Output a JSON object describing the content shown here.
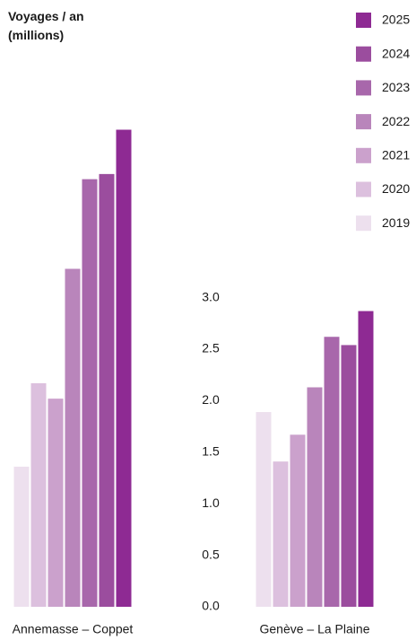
{
  "chart_data": {
    "type": "bar",
    "title": "Voyages / an (millions)",
    "categories": [
      "Annemasse – Coppet",
      "Genève – La Plaine"
    ],
    "series": [
      {
        "name": "2019",
        "color": "#ede0ee",
        "values": [
          1.36,
          1.89
        ]
      },
      {
        "name": "2020",
        "color": "#dcc0de",
        "values": [
          2.17,
          1.41
        ]
      },
      {
        "name": "2021",
        "color": "#cba1cc",
        "values": [
          2.02,
          1.67
        ]
      },
      {
        "name": "2022",
        "color": "#b985bb",
        "values": [
          3.28,
          2.13
        ]
      },
      {
        "name": "2023",
        "color": "#a867ab",
        "values": [
          4.15,
          2.62
        ]
      },
      {
        "name": "2024",
        "color": "#9b4d9e",
        "values": [
          4.2,
          2.54
        ]
      },
      {
        "name": "2025",
        "color": "#8e2a93",
        "values": [
          4.63,
          2.87
        ]
      }
    ],
    "ylim": [
      0,
      4.8
    ],
    "yticks": [
      {
        "value": 0,
        "label": "0.0"
      },
      0.5,
      {
        "value": 1,
        "label": "1.0"
      },
      1.5,
      {
        "value": 2,
        "label": "2.0"
      },
      2.5,
      {
        "value": 3,
        "label": "3.0"
      }
    ],
    "grid": false,
    "legend": "top-right"
  }
}
